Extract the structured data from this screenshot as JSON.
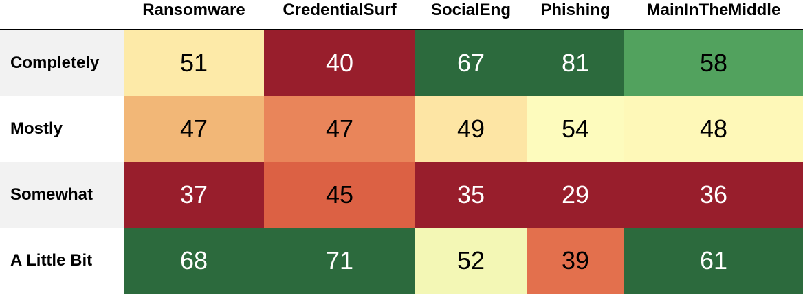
{
  "chart_data": {
    "type": "heatmap",
    "title": "",
    "columns": [
      "Ransomware",
      "CredentialSurf",
      "SocialEng",
      "Phishing",
      "MainInTheMiddle"
    ],
    "rows": [
      "Completely",
      "Mostly",
      "Somewhat",
      "A Little Bit"
    ],
    "values": [
      [
        51,
        40,
        67,
        81,
        58
      ],
      [
        47,
        47,
        49,
        54,
        48
      ],
      [
        37,
        45,
        35,
        29,
        36
      ],
      [
        68,
        71,
        52,
        39,
        61
      ]
    ],
    "cell_colors": [
      [
        "#fdeaa8",
        "#981e2c",
        "#2c6a3d",
        "#2c6a3d",
        "#52a25e"
      ],
      [
        "#f2b777",
        "#e9855a",
        "#fde5a4",
        "#fdfbbd",
        "#fef8b8"
      ],
      [
        "#981e2c",
        "#dc6144",
        "#981e2c",
        "#981e2c",
        "#981e2c"
      ],
      [
        "#2c6a3d",
        "#2c6a3d",
        "#f3f7b5",
        "#e3704d",
        "#2c6a3d"
      ]
    ],
    "text_colors": [
      [
        "#000000",
        "#ffffff",
        "#ffffff",
        "#ffffff",
        "#000000"
      ],
      [
        "#000000",
        "#000000",
        "#000000",
        "#000000",
        "#000000"
      ],
      [
        "#ffffff",
        "#000000",
        "#ffffff",
        "#ffffff",
        "#ffffff"
      ],
      [
        "#ffffff",
        "#ffffff",
        "#000000",
        "#000000",
        "#ffffff"
      ]
    ]
  }
}
